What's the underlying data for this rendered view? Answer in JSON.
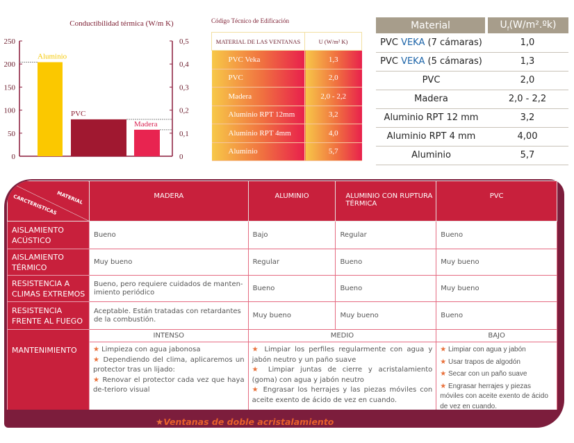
{
  "chart_data": {
    "type": "bar",
    "title": "Conductibilidad térmica (W/m K)",
    "categories": [
      "Aluminio",
      "PVC",
      "Madera"
    ],
    "values": [
      204,
      0.16,
      0.115
    ],
    "axis": [
      "left",
      "right",
      "right"
    ],
    "left_axis": {
      "ylim": [
        0,
        250
      ],
      "ticks": [
        "250",
        "200",
        "150",
        "100",
        "50",
        "0"
      ]
    },
    "right_axis": {
      "ylim": [
        0,
        0.5
      ],
      "ticks": [
        "0,5",
        "0,4",
        "0,3",
        "0,2",
        "0,1",
        "0"
      ]
    },
    "colors": [
      "#fbc800",
      "#a01830",
      "#e82450"
    ],
    "grid": false
  },
  "cte_table": {
    "title": "Código Técnico de Edificación",
    "headers": [
      "MATERIAL DE LAS VENTANAS",
      "U (W/m² K)"
    ],
    "rows": [
      [
        "PVC Veka",
        "1,3"
      ],
      [
        "PVC",
        "2,0"
      ],
      [
        "Madera",
        "2,0 - 2,2"
      ],
      [
        "Aluminio RPT 12mm",
        "3,2"
      ],
      [
        "Aluminio RPT 4mm",
        "4,0"
      ],
      [
        "Aluminio",
        "5,7"
      ]
    ]
  },
  "uf_table": {
    "headers": [
      "Material",
      "U",
      "f",
      "(W/m².ºk)"
    ],
    "rows": [
      {
        "pre": "PVC ",
        "brand": "VEKA",
        "post": " (7 cámaras)",
        "value": "1,0"
      },
      {
        "pre": "PVC ",
        "brand": "VEKA",
        "post": " (5 cámaras)",
        "value": "1,3"
      },
      {
        "pre": "PVC",
        "brand": "",
        "post": "",
        "value": "2,0"
      },
      {
        "pre": "Madera",
        "brand": "",
        "post": "",
        "value": "2,0 - 2,2"
      },
      {
        "pre": "Aluminio RPT 12 mm",
        "brand": "",
        "post": "",
        "value": "3,2"
      },
      {
        "pre": "Aluminio RPT 4 mm",
        "brand": "",
        "post": "",
        "value": "4,00"
      },
      {
        "pre": "Aluminio",
        "brand": "",
        "post": "",
        "value": "5,7"
      }
    ],
    "brand_color": "#1c64a8"
  },
  "comparison": {
    "corner": {
      "top": "MATERIAL",
      "bottom": "CARCTERISTICAS"
    },
    "columns": [
      "MADERA",
      "ALUMINIO",
      "ALUMINIO  CON RUPTURA TÉRMICA",
      "PVC"
    ],
    "rows": [
      {
        "label": "AISLAMIENTO ACÚSTICO",
        "cells": [
          "Bueno",
          "Bajo",
          "Regular",
          "Bueno"
        ]
      },
      {
        "label": "AISLAMIENTO TÉRMICO",
        "cells": [
          "Muy bueno",
          "Regular",
          "Bueno",
          "Muy bueno"
        ]
      },
      {
        "label": "RESISTENCIA A CLIMAS EXTREMOS",
        "cells": [
          "Bueno, pero requiere cuidados de manten-imiento periódico",
          "Bueno",
          "Bueno",
          "Muy bueno"
        ]
      },
      {
        "label": "RESISTENCIA FRENTE AL FUEGO",
        "cells": [
          "Aceptable. Están tratadas con retardantes de la combustión.",
          "Muy bueno",
          "Muy bueno",
          "Bueno"
        ]
      }
    ],
    "maintenance": {
      "label": "MANTENIMIENTO",
      "levels": [
        "INTENSO",
        "MEDIO",
        "BAJO"
      ],
      "madera": [
        "Limpieza con agua jabonosa",
        "Dependiendo del clima, aplicaremos un protector tras un lijado:",
        "Renovar el protector cada vez que haya de-terioro visual"
      ],
      "aluminio": [
        "Limpiar los perfiles regularmente con agua y jabón neutro y un paño suave",
        "Limpiar juntas de cierre y acristalamiento (goma) con agua y jabón neutro",
        "Engrasar los herrajes y las piezas móviles con aceite exento de ácido de vez en cuando."
      ],
      "pvc": [
        "Limpiar con agua  y jabón",
        "Usar trapos de algodón",
        "Secar con un paño suave",
        "Engrasar herrajes y piezas móviles con aceite exento de ácido de vez en cuando."
      ]
    },
    "star_icon": "★",
    "footnote": "Ventanas  de doble acristalamiento"
  }
}
